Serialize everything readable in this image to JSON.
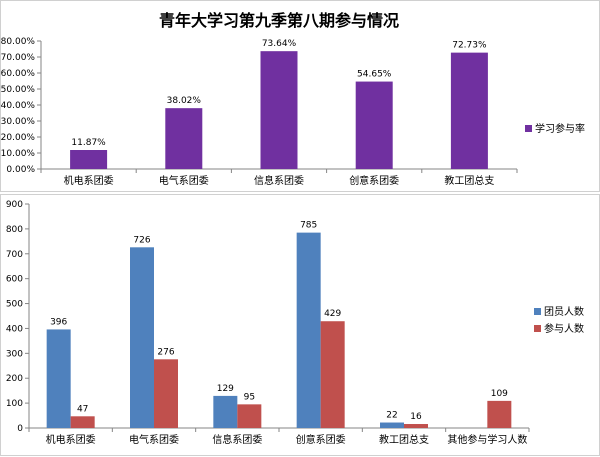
{
  "chart_data": [
    {
      "type": "bar",
      "title": "青年大学习第九季第八期参与情况",
      "categories": [
        "机电系团委",
        "电气系团委",
        "信息系团委",
        "创意系团委",
        "教工团总支"
      ],
      "series": [
        {
          "name": "学习参与率",
          "values": [
            11.87,
            38.02,
            73.64,
            54.65,
            72.73
          ],
          "labels": [
            "11.87%",
            "38.02%",
            "73.64%",
            "54.65%",
            "72.73%"
          ],
          "color": "#7030a0"
        }
      ],
      "ylim": [
        0,
        80
      ],
      "yticks": [
        "0.00%",
        "10.00%",
        "20.00%",
        "30.00%",
        "40.00%",
        "50.00%",
        "60.00%",
        "70.00%",
        "80.00%"
      ],
      "grid": false,
      "legend": "right"
    },
    {
      "type": "bar",
      "title": "",
      "categories": [
        "机电系团委",
        "电气系团委",
        "信息系团委",
        "创意系团委",
        "教工团总支",
        "其他参与学习人数"
      ],
      "series": [
        {
          "name": "团员人数",
          "values": [
            396,
            726,
            129,
            785,
            22,
            null
          ],
          "color": "#4f81bd"
        },
        {
          "name": "参与人数",
          "values": [
            47,
            276,
            95,
            429,
            16,
            109
          ],
          "color": "#c0504d"
        }
      ],
      "ylim": [
        0,
        900
      ],
      "yticks": [
        "0",
        "100",
        "200",
        "300",
        "400",
        "500",
        "600",
        "700",
        "800",
        "900"
      ],
      "grid": false,
      "legend": "right"
    }
  ]
}
